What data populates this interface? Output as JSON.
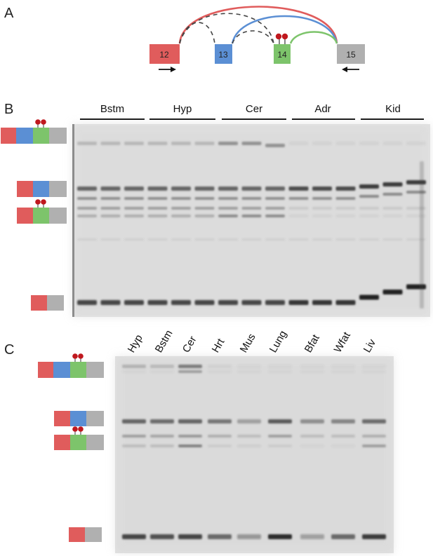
{
  "panels": {
    "a": "A",
    "b": "B",
    "c": "C"
  },
  "colors": {
    "exon12": "#e05c5c",
    "exon13": "#5b8fd4",
    "exon14": "#7dc46b",
    "exon15": "#b0b0b0",
    "lollipop": "#c0181e",
    "arc_12_15": "#e05c5c",
    "arc_13_15": "#5b8fd4",
    "arc_14_15": "#7dc46b",
    "arc_dashed": "#444444"
  },
  "diagram": {
    "exons": [
      {
        "id": "exon12",
        "label": "12"
      },
      {
        "id": "exon13",
        "label": "13"
      },
      {
        "id": "exon14",
        "label": "14"
      },
      {
        "id": "exon15",
        "label": "15"
      }
    ]
  },
  "gel_b": {
    "groups": [
      "Bstm",
      "Hyp",
      "Cer",
      "Adr",
      "Kid"
    ]
  },
  "gel_c": {
    "lanes": [
      "Hyp",
      "Bstm",
      "Cer",
      "Hrt",
      "Mus",
      "Lung",
      "Bfat",
      "Wfat",
      "Liv"
    ]
  }
}
